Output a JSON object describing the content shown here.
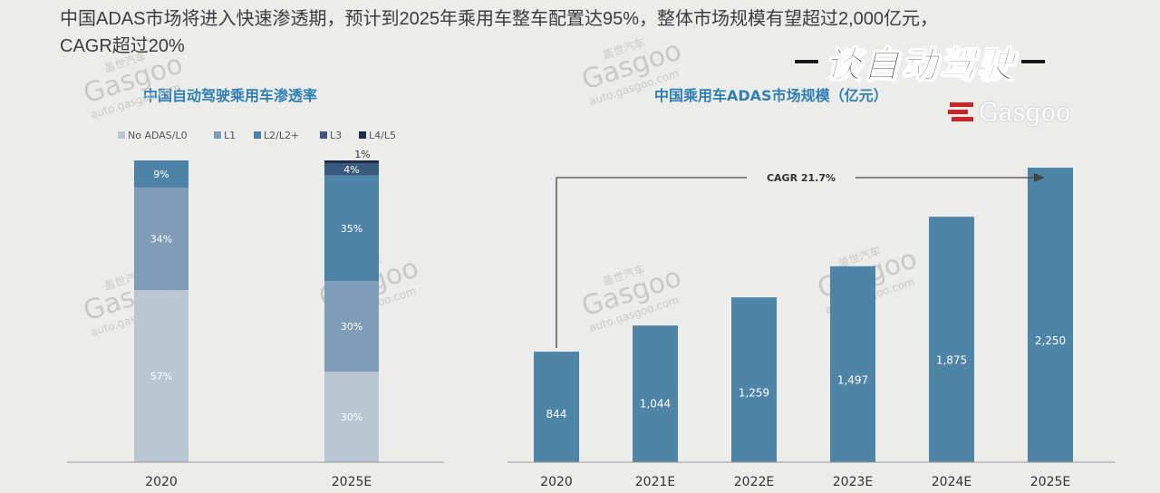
{
  "headline": {
    "line1": "中国ADAS市场将进入快速渗透期，预计到2025年乘用车整车配置达95%，整体市场规模有望超过2,000亿元，",
    "line2": "CAGR超过20%"
  },
  "badge": {
    "text": "谈自动驾驶"
  },
  "brand": {
    "text": "Gasgoo"
  },
  "watermark": {
    "brand": "Gasgoo",
    "domain": "auto.gasgoo.com",
    "cn": "盖世汽车"
  },
  "colors": {
    "no_adas": "#b9c7d3",
    "l1": "#7f9db6",
    "l2": "#4e83a8",
    "l3": "#3a5a7c",
    "l4": "#1e2d4c",
    "bar": "#4e84a6",
    "title": "#2f7fb3"
  },
  "chart_data": [
    {
      "type": "bar",
      "stacked": true,
      "title": "中国自动驾驶乘用车渗透率",
      "categories": [
        "2020",
        "2025E"
      ],
      "series": [
        {
          "name": "No ADAS/L0",
          "values": [
            57,
            30
          ],
          "labels": [
            "57%",
            "30%"
          ]
        },
        {
          "name": "L1",
          "values": [
            34,
            30
          ],
          "labels": [
            "34%",
            "30%"
          ]
        },
        {
          "name": "L2/L2+",
          "values": [
            9,
            35
          ],
          "labels": [
            "9%",
            "35%"
          ]
        },
        {
          "name": "L3",
          "values": [
            0,
            4
          ],
          "labels": [
            "",
            "4%"
          ]
        },
        {
          "name": "L4/L5",
          "values": [
            0,
            1
          ],
          "labels": [
            "",
            "1%"
          ]
        }
      ],
      "ylim": [
        0,
        100
      ],
      "legend": "top",
      "grid": false
    },
    {
      "type": "bar",
      "title": "中国乘用车ADAS市场规模（亿元）",
      "categories": [
        "2020",
        "2021E",
        "2022E",
        "2023E",
        "2024E",
        "2025E"
      ],
      "values": [
        844,
        1044,
        1259,
        1497,
        1875,
        2250
      ],
      "labels": [
        "844",
        "1,044",
        "1,259",
        "1,497",
        "1,875",
        "2,250"
      ],
      "annotation": "CAGR 21.7%",
      "ylim": [
        0,
        2250
      ],
      "grid": false
    }
  ]
}
